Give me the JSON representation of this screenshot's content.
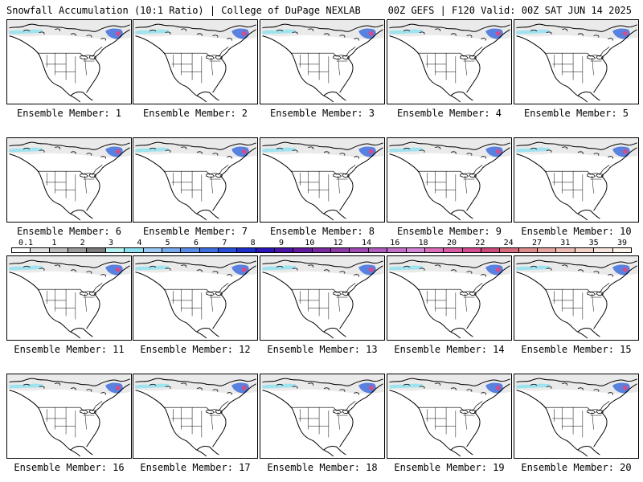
{
  "header": {
    "left": "Snowfall Accumulation (10:1 Ratio) | College of DuPage NEXLAB",
    "right": "00Z GEFS | F120 Valid: 00Z SAT JUN 14 2025"
  },
  "panels": [
    {
      "label": "Ensemble Member: 1"
    },
    {
      "label": "Ensemble Member: 2"
    },
    {
      "label": "Ensemble Member: 3"
    },
    {
      "label": "Ensemble Member: 4"
    },
    {
      "label": "Ensemble Member: 5"
    },
    {
      "label": "Ensemble Member: 6"
    },
    {
      "label": "Ensemble Member: 7"
    },
    {
      "label": "Ensemble Member: 8"
    },
    {
      "label": "Ensemble Member: 9"
    },
    {
      "label": "Ensemble Member: 10"
    },
    {
      "label": "Ensemble Member: 11"
    },
    {
      "label": "Ensemble Member: 12"
    },
    {
      "label": "Ensemble Member: 13"
    },
    {
      "label": "Ensemble Member: 14"
    },
    {
      "label": "Ensemble Member: 15"
    },
    {
      "label": "Ensemble Member: 16"
    },
    {
      "label": "Ensemble Member: 17"
    },
    {
      "label": "Ensemble Member: 18"
    },
    {
      "label": "Ensemble Member: 19"
    },
    {
      "label": "Ensemble Member: 20"
    }
  ],
  "colorbar": {
    "labels": [
      "0.1",
      "1",
      "2",
      "3",
      "4",
      "5",
      "6",
      "7",
      "8",
      "9",
      "10",
      "12",
      "14",
      "16",
      "18",
      "20",
      "22",
      "24",
      "27",
      "31",
      "35",
      "39"
    ],
    "colors": [
      "#ffffff",
      "#e0e0e0",
      "#bdbdbd",
      "#9a9a9a",
      "#7a7a7a",
      "#b6f2f2",
      "#8fe0f0",
      "#9cc8f4",
      "#78aaee",
      "#5a8ce6",
      "#3e6ede",
      "#2a4ed6",
      "#1e2ec8",
      "#2a16b8",
      "#4a14a8",
      "#641a9e",
      "#7a2a9e",
      "#8c3aa6",
      "#9e4ab0",
      "#b05cbc",
      "#c270c8",
      "#d484d4",
      "#dc6cb8",
      "#d85aa2",
      "#d24c8e",
      "#cc4a7a",
      "#d46a7a",
      "#dc8a8a",
      "#e4a4a0",
      "#ecbcb4",
      "#f2d2c8",
      "#f8e6dc",
      "#fdf4ec"
    ]
  }
}
